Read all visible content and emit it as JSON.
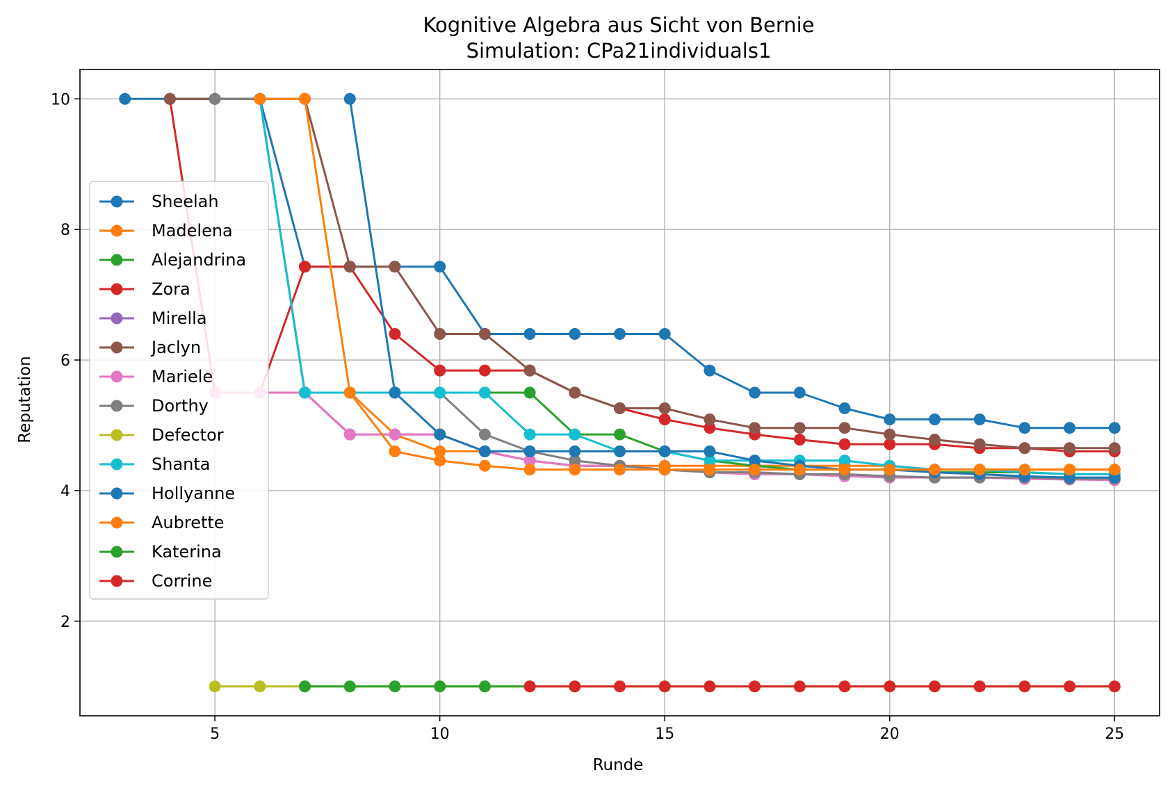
{
  "chart_data": {
    "type": "line",
    "title": "Kognitive Algebra aus Sicht von Bernie",
    "subtitle": "Simulation: CPa21individuals1",
    "xlabel": "Runde",
    "ylabel": "Reputation",
    "xlim": [
      2,
      26
    ],
    "ylim": [
      0.55,
      10.45
    ],
    "xticks": [
      5,
      10,
      15,
      20,
      25
    ],
    "yticks": [
      2,
      4,
      6,
      8,
      10
    ],
    "grid": true,
    "legend_position": "center-left",
    "series": [
      {
        "name": "Sheelah",
        "color": "#1f77b4",
        "x": [
          3,
          4,
          5,
          6,
          7,
          8,
          9,
          10,
          11,
          12,
          13,
          14,
          15,
          16,
          17,
          18,
          19,
          20,
          21,
          22,
          23,
          24,
          25
        ],
        "y": [
          10,
          10,
          10,
          10,
          7.43,
          7.43,
          7.43,
          7.43,
          6.4,
          6.4,
          6.4,
          6.4,
          6.4,
          5.84,
          5.5,
          5.5,
          5.26,
          5.09,
          5.09,
          5.09,
          4.96,
          4.96,
          4.96
        ]
      },
      {
        "name": "Madelena",
        "color": "#ff7f0e",
        "x": [
          5,
          6,
          7,
          8,
          9,
          10,
          11,
          12,
          13,
          14,
          15,
          16,
          17,
          18,
          19,
          20,
          21,
          22,
          23,
          24,
          25
        ],
        "y": [
          5.5,
          5.5,
          5.5,
          5.5,
          4.86,
          4.6,
          4.6,
          4.46,
          4.38,
          4.38,
          4.38,
          4.38,
          4.38,
          4.38,
          4.38,
          4.38,
          4.32,
          4.32,
          4.32,
          4.32,
          4.32
        ]
      },
      {
        "name": "Alejandrina",
        "color": "#2ca02c",
        "x": [
          7,
          8,
          9,
          10,
          11,
          12,
          13,
          14,
          15,
          16,
          17,
          18,
          19,
          20,
          21,
          22,
          23,
          24,
          25
        ],
        "y": [
          5.5,
          5.5,
          5.5,
          5.5,
          5.5,
          5.5,
          4.86,
          4.86,
          4.6,
          4.46,
          4.38,
          4.32,
          4.32,
          4.32,
          4.28,
          4.28,
          4.28,
          4.25,
          4.25
        ]
      },
      {
        "name": "Zora",
        "color": "#d62728",
        "x": [
          4,
          5,
          6,
          7,
          8,
          9,
          10,
          11,
          12,
          13,
          14,
          15,
          16,
          17,
          18,
          19,
          20,
          21,
          22,
          23,
          24,
          25
        ],
        "y": [
          10,
          5.5,
          5.5,
          7.43,
          7.43,
          6.4,
          5.84,
          5.84,
          5.84,
          5.5,
          5.26,
          5.09,
          4.96,
          4.86,
          4.78,
          4.71,
          4.71,
          4.71,
          4.65,
          4.65,
          4.6,
          4.6
        ]
      },
      {
        "name": "Mirella",
        "color": "#9467bd",
        "x": [
          6,
          7,
          8,
          9,
          10,
          11,
          12,
          13,
          14,
          15,
          16,
          17,
          18,
          19,
          20,
          21,
          22,
          23,
          24,
          25
        ],
        "y": [
          10,
          5.5,
          4.86,
          4.86,
          4.86,
          4.6,
          4.46,
          4.38,
          4.38,
          4.32,
          4.28,
          4.25,
          4.25,
          4.22,
          4.22,
          4.2,
          4.2,
          4.18,
          4.18,
          4.17
        ]
      },
      {
        "name": "Jaclyn",
        "color": "#8c564b",
        "x": [
          4,
          5,
          6,
          7,
          8,
          9,
          10,
          11,
          12,
          13,
          14,
          15,
          16,
          17,
          18,
          19,
          20,
          21,
          22,
          23,
          24,
          25
        ],
        "y": [
          10,
          10,
          10,
          10,
          7.43,
          7.43,
          6.4,
          6.4,
          5.84,
          5.5,
          5.26,
          5.26,
          5.09,
          4.96,
          4.96,
          4.96,
          4.86,
          4.78,
          4.71,
          4.65,
          4.65,
          4.65
        ]
      },
      {
        "name": "Mariele",
        "color": "#e377c2",
        "x": [
          5,
          6,
          7,
          8,
          9,
          10,
          11,
          12,
          13,
          14,
          15,
          16,
          17,
          18,
          19,
          20,
          21,
          22,
          23,
          24,
          25
        ],
        "y": [
          5.5,
          5.5,
          5.5,
          4.86,
          4.86,
          4.86,
          4.6,
          4.46,
          4.38,
          4.38,
          4.32,
          4.28,
          4.25,
          4.25,
          4.22,
          4.2,
          4.2,
          4.2,
          4.18,
          4.17,
          4.16
        ]
      },
      {
        "name": "Dorthy",
        "color": "#7f7f7f",
        "x": [
          5,
          6,
          7,
          8,
          9,
          10,
          11,
          12,
          13,
          14,
          15,
          16,
          17,
          18,
          19,
          20,
          21,
          22,
          23,
          24,
          25
        ],
        "y": [
          10,
          10,
          5.5,
          5.5,
          5.5,
          5.5,
          4.86,
          4.6,
          4.46,
          4.38,
          4.32,
          4.28,
          4.28,
          4.25,
          4.25,
          4.22,
          4.2,
          4.2,
          4.2,
          4.18,
          4.18
        ]
      },
      {
        "name": "Defector",
        "color": "#bcbd22",
        "x": [
          5,
          6,
          7,
          8,
          9,
          10,
          11,
          12,
          13,
          14,
          15,
          16,
          17,
          18,
          19,
          20,
          21,
          22,
          23,
          24,
          25
        ],
        "y": [
          1,
          1,
          1,
          1,
          1,
          1,
          1,
          1,
          1,
          1,
          1,
          1,
          1,
          1,
          1,
          1,
          1,
          1,
          1,
          1,
          1
        ]
      },
      {
        "name": "Shanta",
        "color": "#17becf",
        "x": [
          6,
          7,
          8,
          9,
          10,
          11,
          12,
          13,
          14,
          15,
          16,
          17,
          18,
          19,
          20,
          21,
          22,
          23,
          24,
          25
        ],
        "y": [
          10,
          5.5,
          5.5,
          5.5,
          5.5,
          5.5,
          4.86,
          4.86,
          4.6,
          4.6,
          4.46,
          4.46,
          4.46,
          4.46,
          4.38,
          4.32,
          4.32,
          4.28,
          4.25,
          4.25
        ]
      },
      {
        "name": "Hollyanne",
        "color": "#1f77b4",
        "x": [
          8,
          9,
          10,
          11,
          12,
          13,
          14,
          15,
          16,
          17,
          18,
          19,
          20,
          21,
          22,
          23,
          24,
          25
        ],
        "y": [
          10,
          5.5,
          4.86,
          4.6,
          4.6,
          4.6,
          4.6,
          4.6,
          4.6,
          4.46,
          4.38,
          4.32,
          4.32,
          4.28,
          4.25,
          4.22,
          4.2,
          4.2
        ]
      },
      {
        "name": "Aubrette",
        "color": "#ff7f0e",
        "x": [
          6,
          7,
          8,
          9,
          10,
          11,
          12,
          13,
          14,
          15,
          16,
          17,
          18,
          19,
          20,
          21,
          22,
          23,
          24,
          25
        ],
        "y": [
          10,
          10,
          5.5,
          4.6,
          4.46,
          4.38,
          4.32,
          4.32,
          4.32,
          4.32,
          4.32,
          4.32,
          4.32,
          4.32,
          4.32,
          4.32,
          4.32,
          4.32,
          4.32,
          4.32
        ]
      },
      {
        "name": "Katerina",
        "color": "#2ca02c",
        "x": [
          7,
          8,
          9,
          10,
          11,
          12
        ],
        "y": [
          1,
          1,
          1,
          1,
          1,
          1
        ]
      },
      {
        "name": "Corrine",
        "color": "#d62728",
        "x": [
          12,
          13,
          14,
          15,
          16,
          17,
          18,
          19,
          20,
          21,
          22,
          23,
          24,
          25
        ],
        "y": [
          1,
          1,
          1,
          1,
          1,
          1,
          1,
          1,
          1,
          1,
          1,
          1,
          1,
          1
        ]
      }
    ]
  }
}
